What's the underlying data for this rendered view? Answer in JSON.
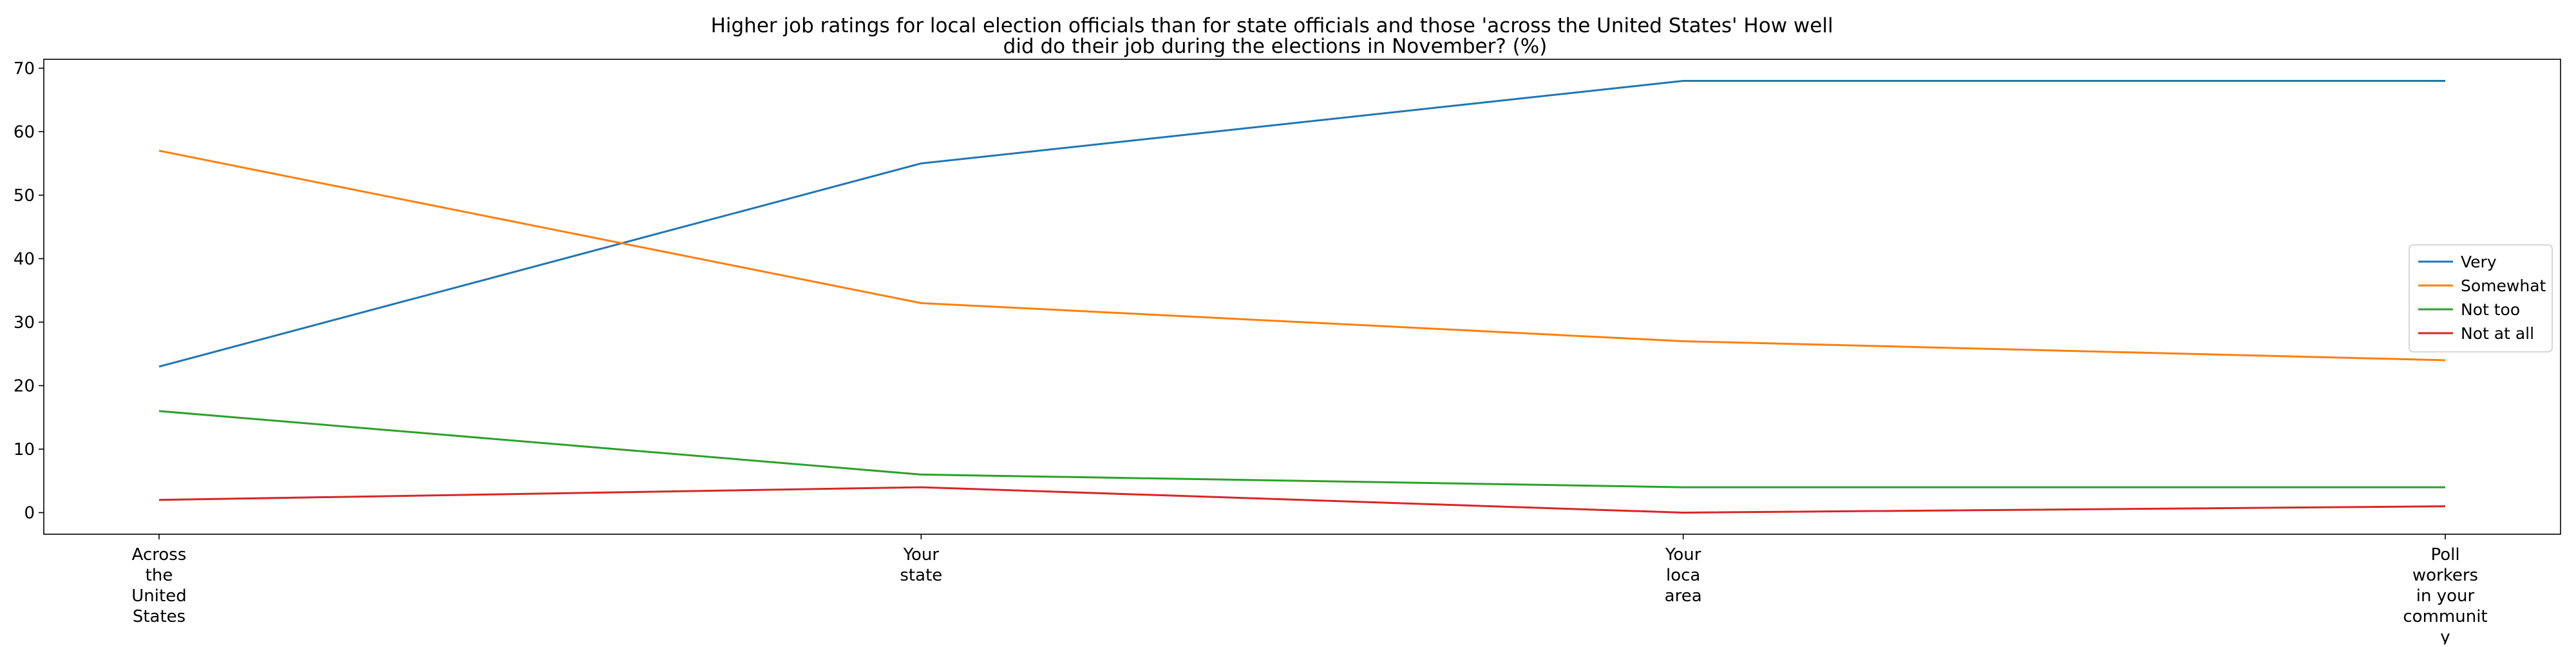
{
  "chart_data": {
    "type": "line",
    "title": "Higher job ratings for local election officials than for state officials and those 'across the United States' How well did do their job during the elections in November? (%)",
    "title_lines": [
      "Higher job ratings for local election officials than for state officials and those 'across the United States' How well",
      "did do their job during the elections in November? (%)"
    ],
    "xlabel": "",
    "ylabel": "",
    "categories": [
      "Across the United States",
      "Your state",
      "Your loca area",
      "Poll workers in your communit y"
    ],
    "category_label_lines": [
      [
        "Across",
        "the",
        "United",
        "States"
      ],
      [
        "Your",
        "state"
      ],
      [
        "Your",
        "loca",
        "area"
      ],
      [
        "Poll",
        "workers",
        "in your",
        "communit",
        "y"
      ]
    ],
    "series": [
      {
        "name": "Very",
        "values": [
          23,
          55,
          68,
          68
        ],
        "color": "#1f77b4"
      },
      {
        "name": "Somewhat",
        "values": [
          57,
          33,
          27,
          24
        ],
        "color": "#ff7f0e"
      },
      {
        "name": "Not too",
        "values": [
          16,
          6,
          4,
          4
        ],
        "color": "#2ca02c"
      },
      {
        "name": "Not at all",
        "values": [
          2,
          4,
          0,
          1
        ],
        "color": "#d62728"
      }
    ],
    "ylim": [
      -3.4,
      71.4
    ],
    "yticks": [
      0,
      10,
      20,
      30,
      40,
      50,
      60,
      70
    ],
    "grid": false,
    "legend_position": "right"
  }
}
